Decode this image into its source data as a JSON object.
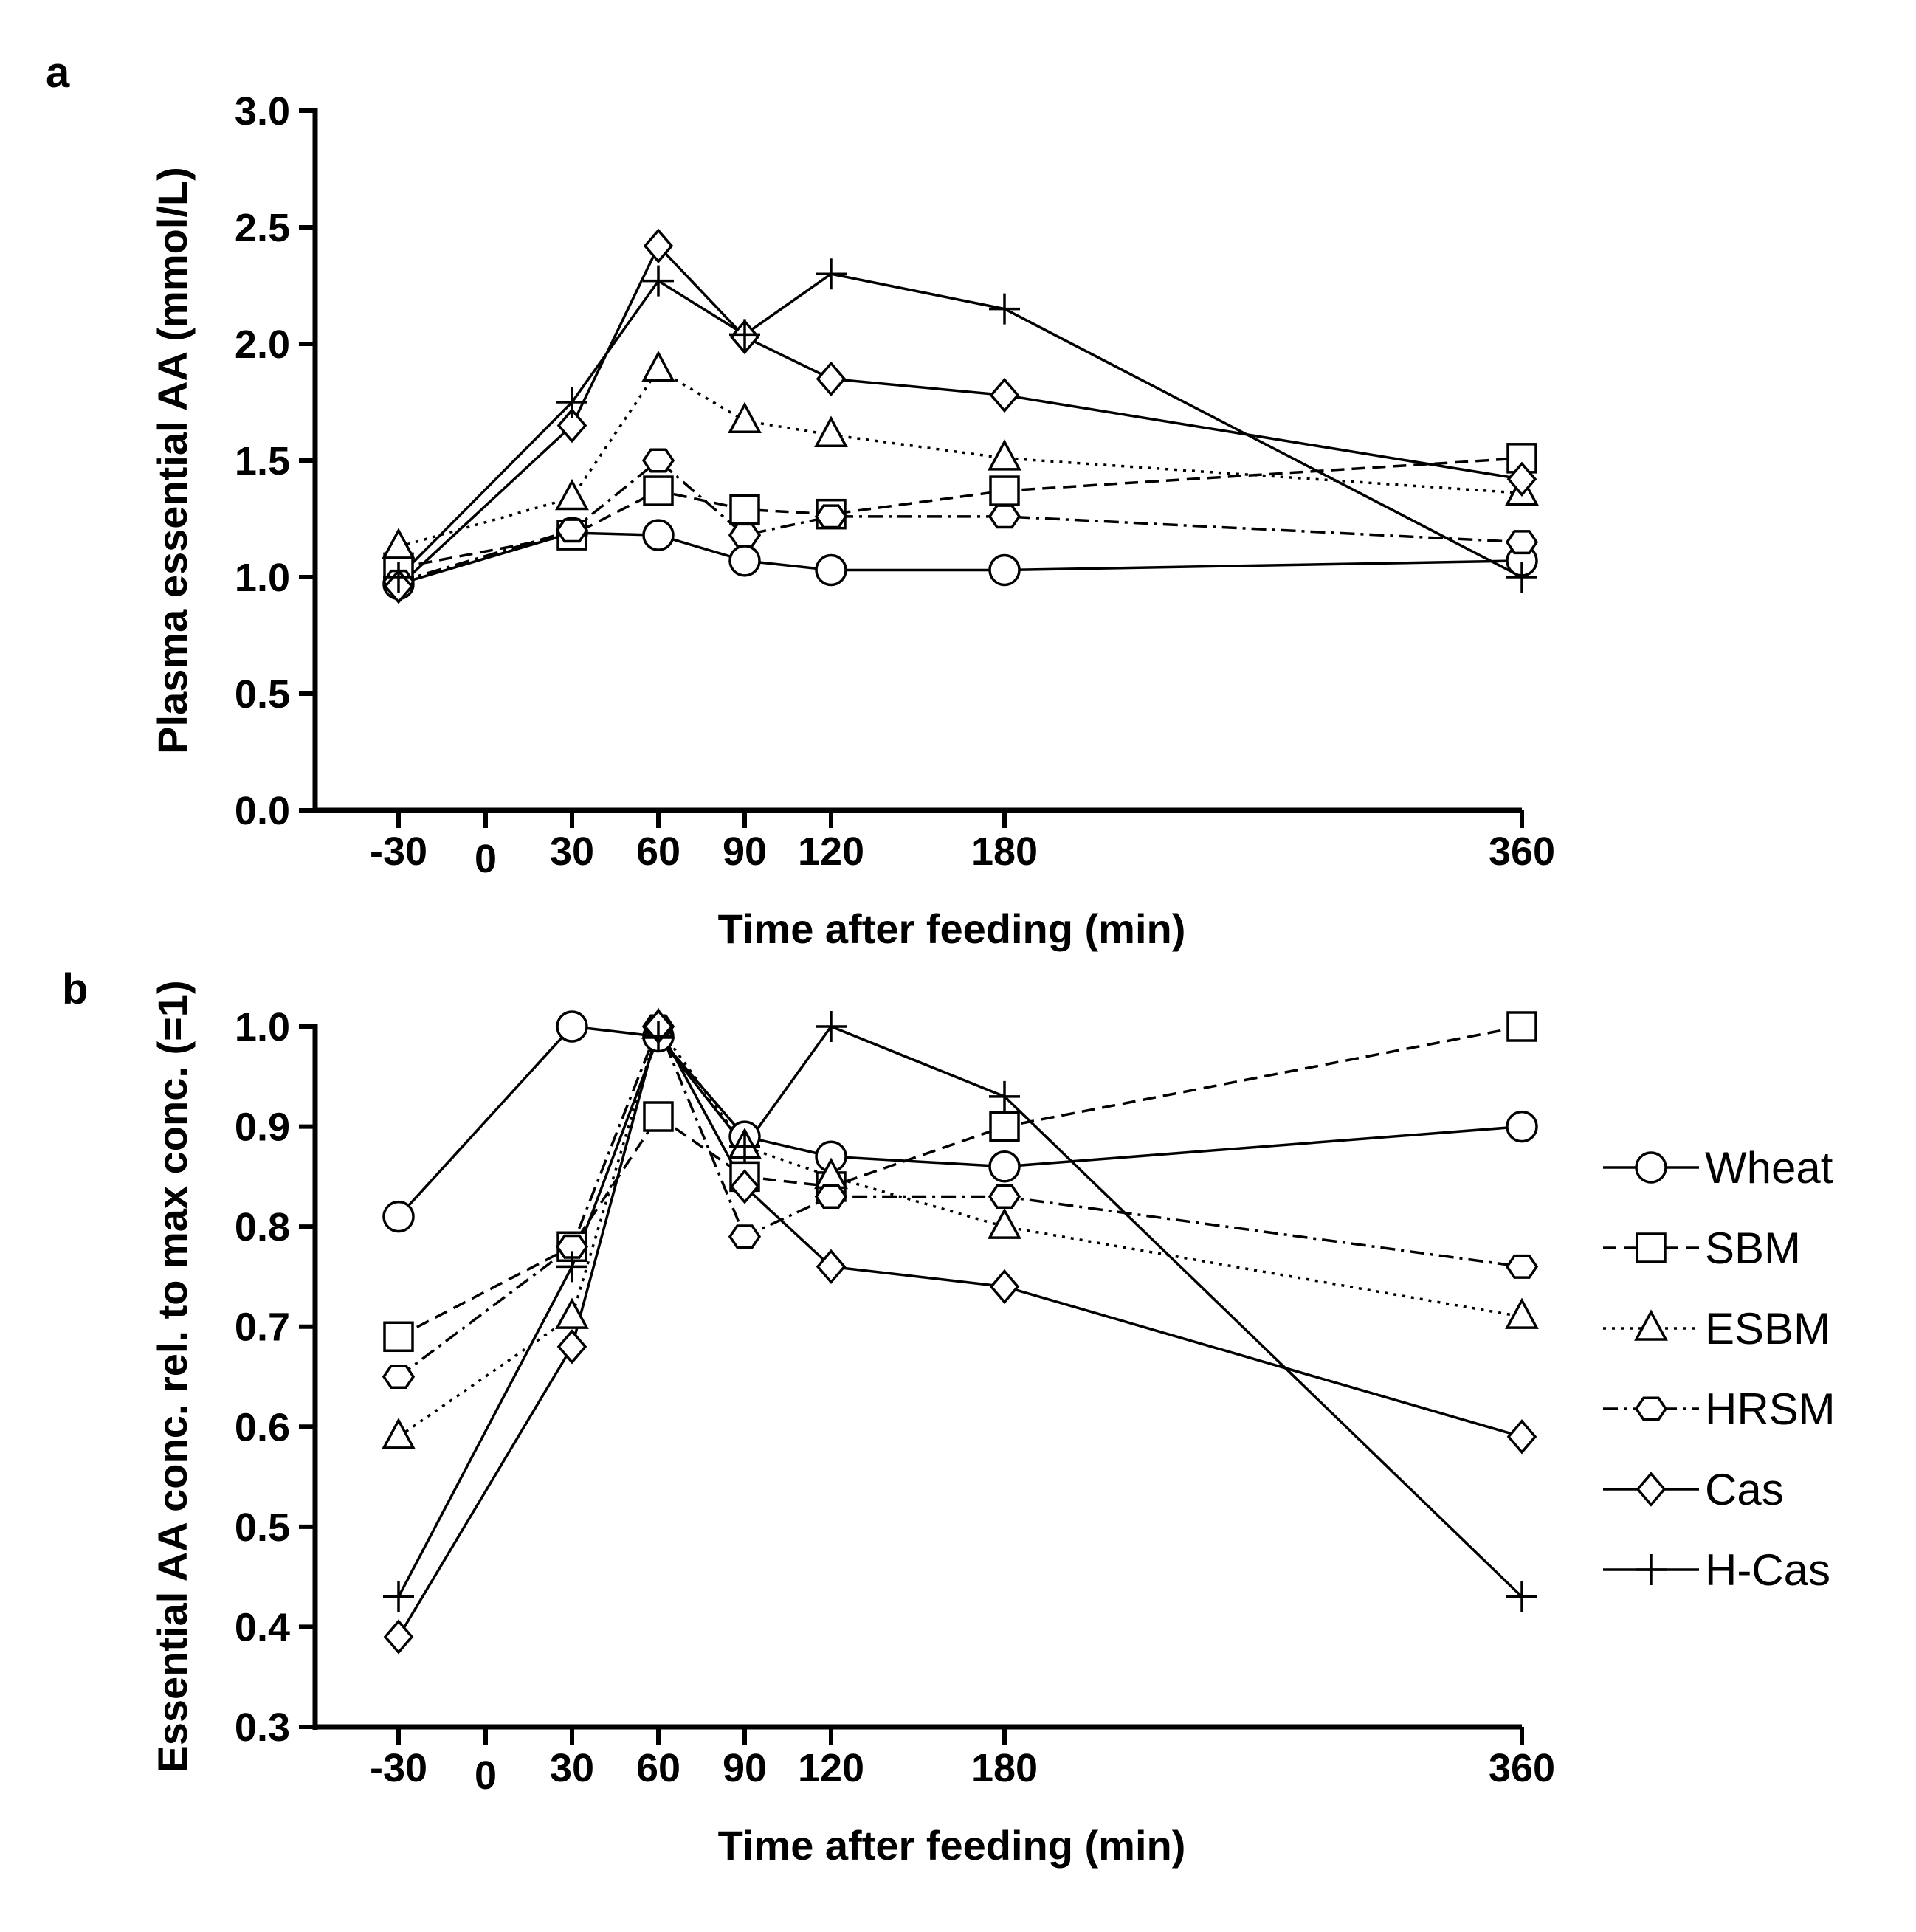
{
  "chart_data": [
    {
      "panel": "a",
      "type": "line",
      "xlabel": "Time after feeding (min)",
      "ylabel": "Plasma essential AA (mmol/L)",
      "ylim": [
        0,
        3.0
      ],
      "yticks": [
        "0.0",
        "0.5",
        "1.0",
        "1.5",
        "2.0",
        "2.5",
        "3.0"
      ],
      "xticks": [
        "-30",
        "0",
        "30",
        "60",
        "90",
        "120",
        "180",
        "360"
      ],
      "x": [
        -30,
        30,
        60,
        90,
        120,
        180,
        360
      ],
      "series": [
        {
          "name": "Wheat",
          "marker": "circle",
          "dash": "solid",
          "values": [
            0.97,
            1.19,
            1.18,
            1.07,
            1.03,
            1.03,
            1.07
          ]
        },
        {
          "name": "SBM",
          "marker": "square",
          "dash": "dashed",
          "values": [
            1.04,
            1.18,
            1.37,
            1.29,
            1.27,
            1.37,
            1.51
          ]
        },
        {
          "name": "ESBM",
          "marker": "triangle",
          "dash": "dotted",
          "values": [
            1.13,
            1.34,
            1.89,
            1.67,
            1.61,
            1.51,
            1.36
          ]
        },
        {
          "name": "HRSM",
          "marker": "hexagon",
          "dash": "dashdot",
          "values": [
            0.98,
            1.2,
            1.5,
            1.18,
            1.26,
            1.26,
            1.15
          ]
        },
        {
          "name": "Cas",
          "marker": "diamond",
          "dash": "solid",
          "values": [
            0.96,
            1.65,
            2.42,
            2.03,
            1.85,
            1.78,
            1.42
          ]
        },
        {
          "name": "H-Cas",
          "marker": "plus",
          "dash": "solid",
          "values": [
            1.0,
            1.75,
            2.27,
            2.04,
            2.3,
            2.15,
            1.0
          ]
        }
      ]
    },
    {
      "panel": "b",
      "type": "line",
      "xlabel": "Time after feeding (min)",
      "ylabel": "Essential AA conc. rel. to max conc. (=1)",
      "ylim": [
        0.3,
        1.0
      ],
      "yticks": [
        "0.3",
        "0.4",
        "0.5",
        "0.6",
        "0.7",
        "0.8",
        "0.9",
        "1.0"
      ],
      "xticks": [
        "-30",
        "0",
        "30",
        "60",
        "90",
        "120",
        "180",
        "360"
      ],
      "x": [
        -30,
        30,
        60,
        90,
        120,
        180,
        360
      ],
      "series": [
        {
          "name": "Wheat",
          "marker": "circle",
          "dash": "solid",
          "values": [
            0.81,
            1.0,
            0.99,
            0.89,
            0.87,
            0.86,
            0.9
          ]
        },
        {
          "name": "SBM",
          "marker": "square",
          "dash": "dashed",
          "values": [
            0.69,
            0.78,
            0.91,
            0.85,
            0.84,
            0.9,
            1.0
          ]
        },
        {
          "name": "ESBM",
          "marker": "triangle",
          "dash": "dotted",
          "values": [
            0.59,
            0.71,
            1.0,
            0.88,
            0.85,
            0.8,
            0.71
          ]
        },
        {
          "name": "HRSM",
          "marker": "hexagon",
          "dash": "dashdot",
          "values": [
            0.65,
            0.78,
            1.0,
            0.79,
            0.83,
            0.83,
            0.76
          ]
        },
        {
          "name": "Cas",
          "marker": "diamond",
          "dash": "solid",
          "values": [
            0.39,
            0.68,
            1.0,
            0.84,
            0.76,
            0.74,
            0.59
          ]
        },
        {
          "name": "H-Cas",
          "marker": "plus",
          "dash": "solid",
          "values": [
            0.43,
            0.76,
            0.99,
            0.88,
            1.0,
            0.93,
            0.43
          ]
        }
      ]
    }
  ],
  "legend": [
    "Wheat",
    "SBM",
    "ESBM",
    "HRSM",
    "Cas",
    "H-Cas"
  ],
  "line_color": "#000000"
}
